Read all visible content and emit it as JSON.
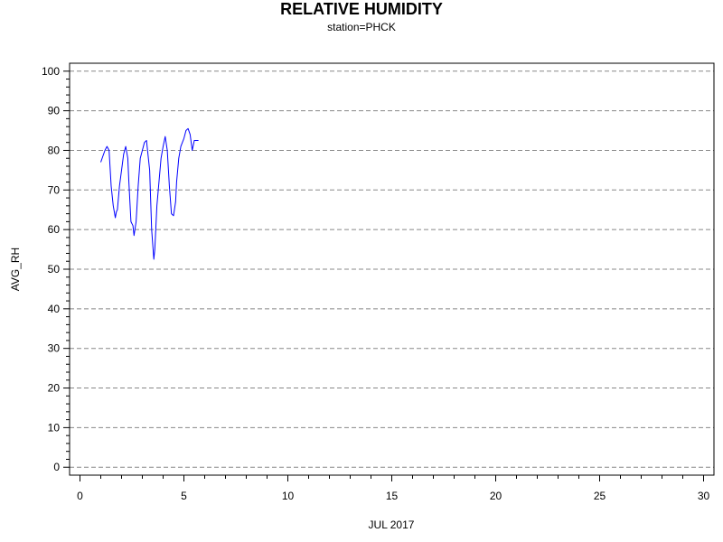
{
  "chart_data": {
    "type": "line",
    "title": "RELATIVE HUMIDITY",
    "subtitle": "station=PHCK",
    "xlabel": "JUL 2017",
    "ylabel": "AVG_RH",
    "xlim": [
      -0.5,
      30.5
    ],
    "ylim": [
      -2,
      102
    ],
    "x_ticks": [
      0,
      5,
      10,
      15,
      20,
      25,
      30
    ],
    "y_ticks": [
      0,
      10,
      20,
      30,
      40,
      50,
      60,
      70,
      80,
      90,
      100
    ],
    "grid": "horizontal dashed",
    "series": [
      {
        "color": "#0000ff",
        "x": [
          1.0,
          1.1,
          1.2,
          1.3,
          1.4,
          1.5,
          1.6,
          1.7,
          1.75,
          1.8,
          1.9,
          2.0,
          2.1,
          2.2,
          2.3,
          2.35,
          2.45,
          2.55,
          2.6,
          2.7,
          2.8,
          2.9,
          3.0,
          3.1,
          3.2,
          3.35,
          3.45,
          3.55,
          3.6,
          3.7,
          3.8,
          3.9,
          4.0,
          4.1,
          4.2,
          4.3,
          4.4,
          4.5,
          4.6,
          4.65,
          4.75,
          4.85,
          5.0,
          5.1,
          5.2,
          5.3,
          5.4,
          5.5,
          5.6,
          5.7
        ],
        "y": [
          77,
          78.5,
          80,
          81,
          80,
          71,
          66,
          63,
          64.5,
          65,
          71,
          75,
          79,
          81,
          78,
          72,
          62,
          61,
          58.5,
          62,
          71,
          78,
          80,
          82,
          82.5,
          75,
          60,
          52.5,
          55,
          66,
          72,
          78,
          81,
          83.5,
          80,
          71,
          64,
          63.5,
          67,
          72,
          78,
          81,
          83,
          85,
          85.5,
          84,
          80,
          82.5,
          82.5,
          82.5
        ]
      }
    ]
  }
}
